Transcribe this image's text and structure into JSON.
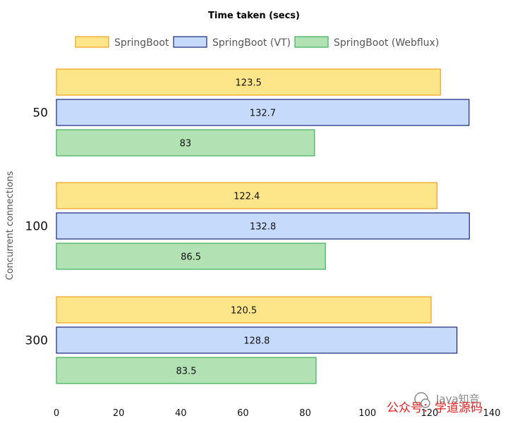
{
  "chart_data": {
    "type": "bar",
    "orientation": "horizontal",
    "title": "Time taken (secs)",
    "ylabel": "Concurrent connections",
    "xlabel": "",
    "categories": [
      "50",
      "100",
      "300"
    ],
    "series": [
      {
        "name": "SpringBoot",
        "values": [
          123.5,
          122.4,
          120.5
        ],
        "fill": "#fde68a",
        "stroke": "#f0a020"
      },
      {
        "name": "SpringBoot (VT)",
        "values": [
          132.7,
          132.8,
          128.8
        ],
        "fill": "#c6dafc",
        "stroke": "#1a237e"
      },
      {
        "name": "SpringBoot (Webflux)",
        "values": [
          83,
          86.5,
          83.5
        ],
        "fill": "#b2e2b4",
        "stroke": "#3fae5a"
      }
    ],
    "xlim": [
      0,
      140
    ],
    "x_ticks": [
      0,
      20,
      40,
      60,
      80,
      100,
      120,
      140
    ],
    "grid": false,
    "legend_position": "top"
  },
  "watermark": {
    "line1": "Java知音",
    "line2": "公众号：学道源码"
  }
}
